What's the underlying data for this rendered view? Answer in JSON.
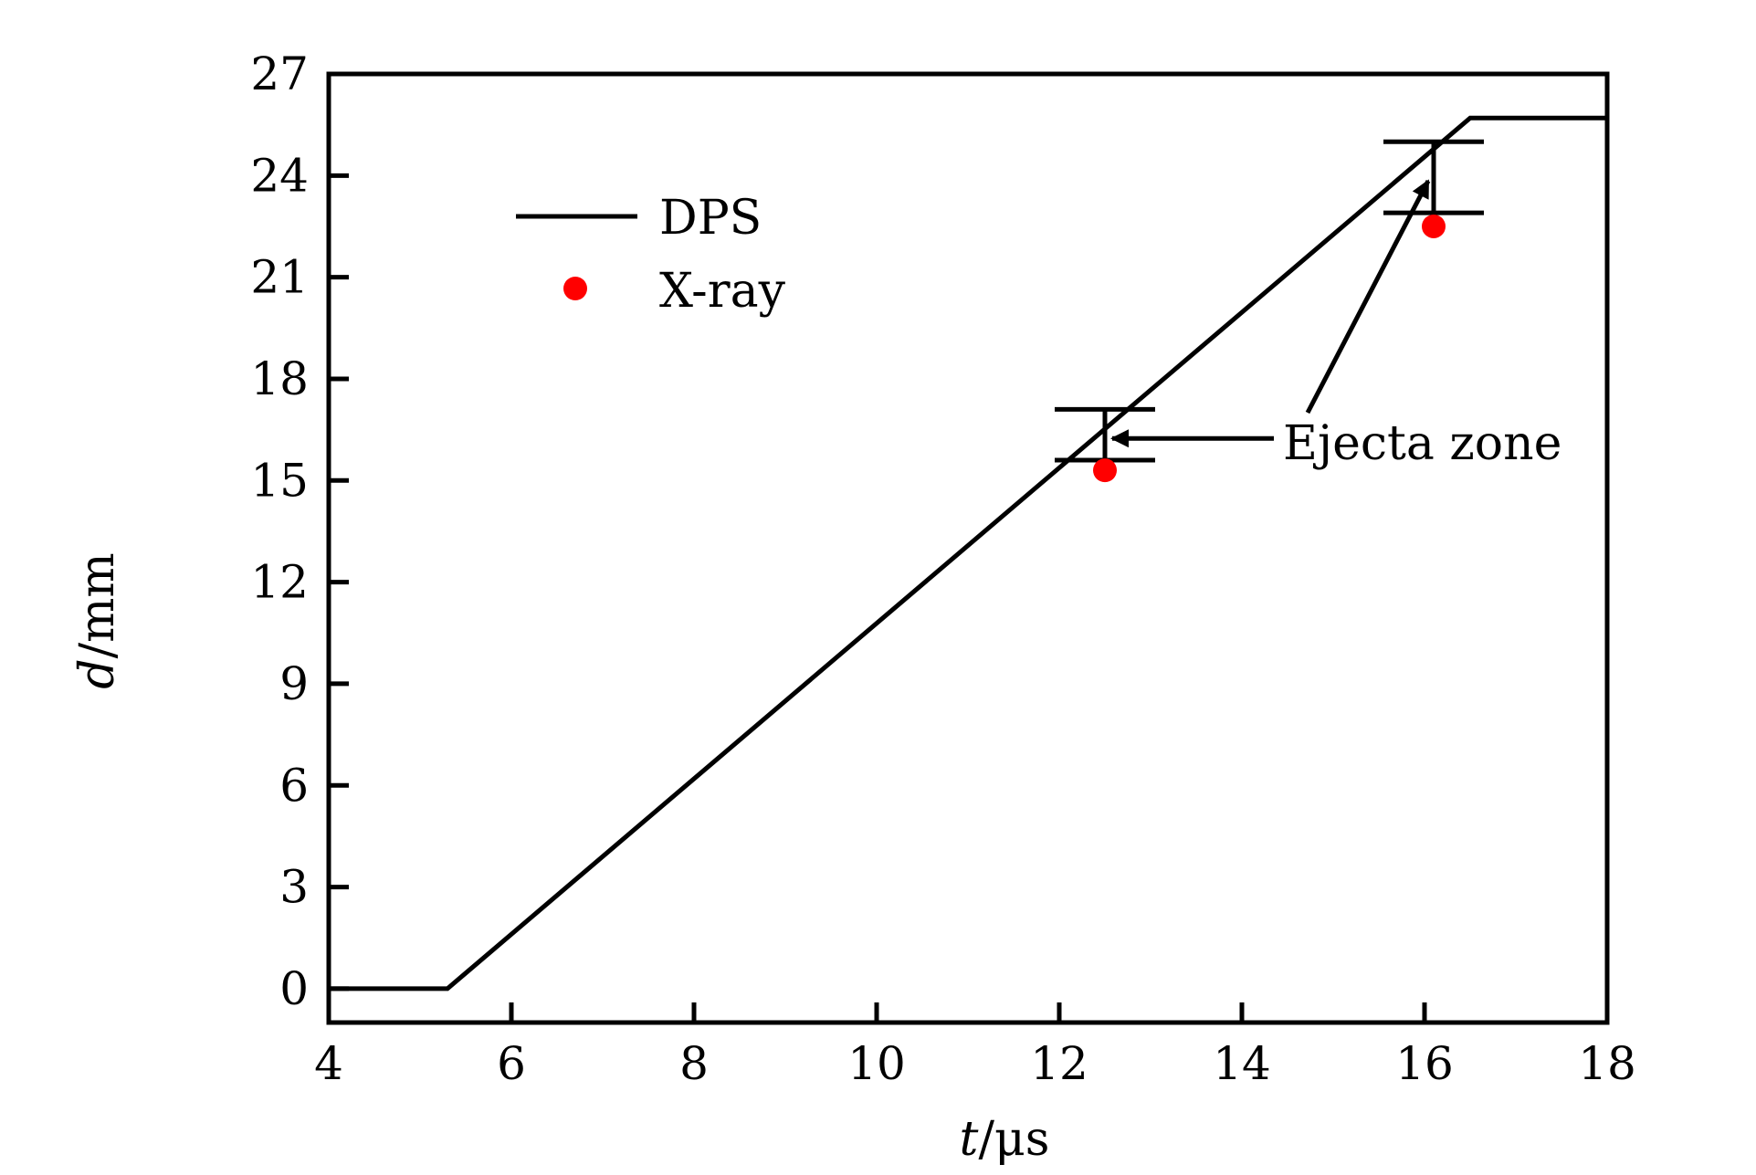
{
  "chart_data": {
    "type": "line",
    "title": "",
    "xlabel_var": "t",
    "xlabel_unit": "/μs",
    "ylabel_var": "d",
    "ylabel_unit": "/mm",
    "xlim": [
      4,
      18
    ],
    "ylim": [
      -1,
      27
    ],
    "x_ticks": [
      4,
      6,
      8,
      10,
      12,
      14,
      16,
      18
    ],
    "y_ticks": [
      0,
      3,
      6,
      9,
      12,
      15,
      18,
      21,
      24,
      27
    ],
    "grid": false,
    "legend_position": "upper-left",
    "series": [
      {
        "name": "DPS",
        "kind": "line",
        "color": "#000000",
        "x": [
          4.0,
          5.3,
          16.5,
          18.0
        ],
        "y": [
          0.0,
          0.0,
          25.7,
          25.7
        ]
      },
      {
        "name": "X-ray",
        "kind": "scatter",
        "color": "#ff0000",
        "x": [
          12.5,
          16.1
        ],
        "y": [
          15.3,
          22.5
        ]
      }
    ],
    "ejecta_bars": [
      {
        "x": 12.5,
        "low": 15.6,
        "high": 17.1
      },
      {
        "x": 16.1,
        "low": 22.9,
        "high": 25.0
      }
    ],
    "annotation": {
      "text": "Ejecta zone"
    }
  }
}
